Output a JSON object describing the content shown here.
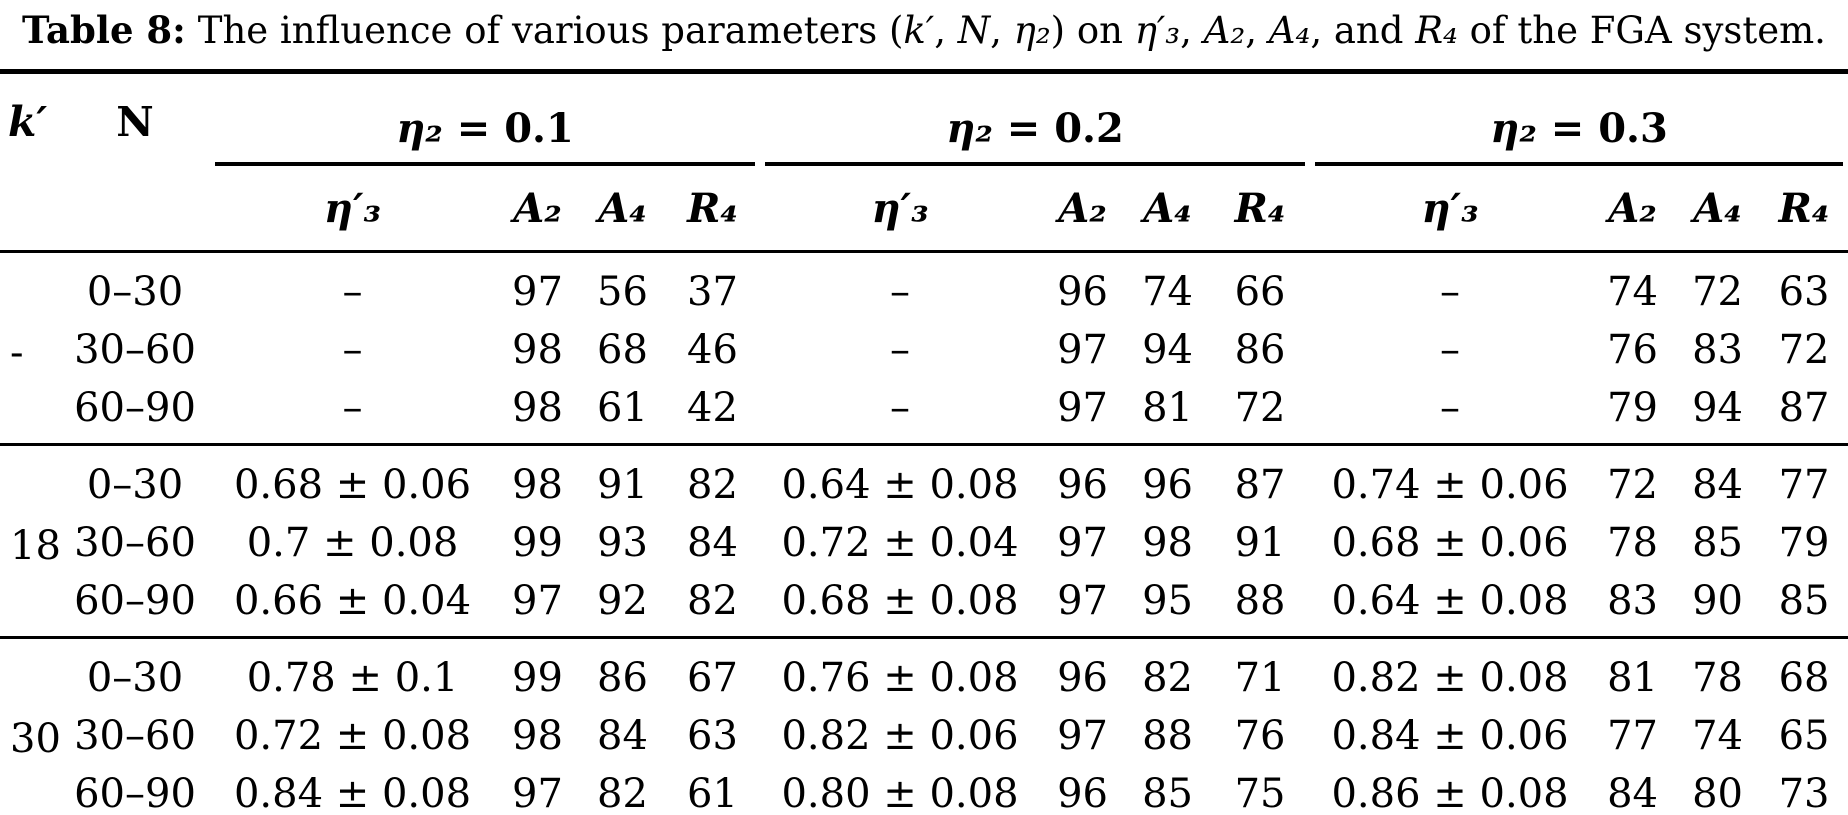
{
  "caption": {
    "label": "Table 8:",
    "segments": [
      {
        "t": "The influence of various parameters (",
        "i": false
      },
      {
        "t": "k′",
        "i": true
      },
      {
        "t": ", ",
        "i": false
      },
      {
        "t": "N",
        "i": true
      },
      {
        "t": ", ",
        "i": false
      },
      {
        "t": "η₂",
        "i": true
      },
      {
        "t": ") on ",
        "i": false
      },
      {
        "t": "η′₃",
        "i": true
      },
      {
        "t": ", ",
        "i": false
      },
      {
        "t": "A₂",
        "i": true
      },
      {
        "t": ", ",
        "i": false
      },
      {
        "t": "A₄",
        "i": true
      },
      {
        "t": ", and ",
        "i": false
      },
      {
        "t": "R₄",
        "i": true
      },
      {
        "t": " of the FGA system.",
        "i": false
      }
    ]
  },
  "table": {
    "kprime_header": "k′",
    "n_header": "N",
    "groups": [
      {
        "var": "η₂",
        "rest": " = 0.1"
      },
      {
        "var": "η₂",
        "rest": " = 0.2"
      },
      {
        "var": "η₂",
        "rest": " = 0.3"
      }
    ],
    "subheaders": [
      "η′₃",
      "A₂",
      "A₄",
      "R₄"
    ],
    "blocks": [
      {
        "kprime": "-",
        "rows": [
          {
            "n": "0–30",
            "values": [
              "–",
              "97",
              "56",
              "37",
              "–",
              "96",
              "74",
              "66",
              "–",
              "74",
              "72",
              "63"
            ]
          },
          {
            "n": "30–60",
            "values": [
              "–",
              "98",
              "68",
              "46",
              "–",
              "97",
              "94",
              "86",
              "–",
              "76",
              "83",
              "72"
            ]
          },
          {
            "n": "60–90",
            "values": [
              "–",
              "98",
              "61",
              "42",
              "–",
              "97",
              "81",
              "72",
              "–",
              "79",
              "94",
              "87"
            ]
          }
        ]
      },
      {
        "kprime": "18",
        "rows": [
          {
            "n": "0–30",
            "values": [
              "0.68 ± 0.06",
              "98",
              "91",
              "82",
              "0.64 ± 0.08",
              "96",
              "96",
              "87",
              "0.74 ± 0.06",
              "72",
              "84",
              "77"
            ]
          },
          {
            "n": "30–60",
            "values": [
              "0.7 ± 0.08",
              "99",
              "93",
              "84",
              "0.72 ± 0.04",
              "97",
              "98",
              "91",
              "0.68 ± 0.06",
              "78",
              "85",
              "79"
            ]
          },
          {
            "n": "60–90",
            "values": [
              "0.66 ± 0.04",
              "97",
              "92",
              "82",
              "0.68 ± 0.08",
              "97",
              "95",
              "88",
              "0.64 ± 0.08",
              "83",
              "90",
              "85"
            ]
          }
        ]
      },
      {
        "kprime": "30",
        "rows": [
          {
            "n": "0–30",
            "values": [
              "0.78 ± 0.1",
              "99",
              "86",
              "67",
              "0.76 ± 0.08",
              "96",
              "82",
              "71",
              "0.82 ± 0.08",
              "81",
              "78",
              "68"
            ]
          },
          {
            "n": "30–60",
            "values": [
              "0.72 ± 0.08",
              "98",
              "84",
              "63",
              "0.82 ± 0.06",
              "97",
              "88",
              "76",
              "0.84 ± 0.06",
              "77",
              "74",
              "65"
            ]
          },
          {
            "n": "60–90",
            "values": [
              "0.84 ± 0.08",
              "97",
              "82",
              "61",
              "0.80 ± 0.08",
              "96",
              "85",
              "75",
              "0.86 ± 0.08",
              "84",
              "80",
              "73"
            ]
          }
        ]
      }
    ]
  }
}
